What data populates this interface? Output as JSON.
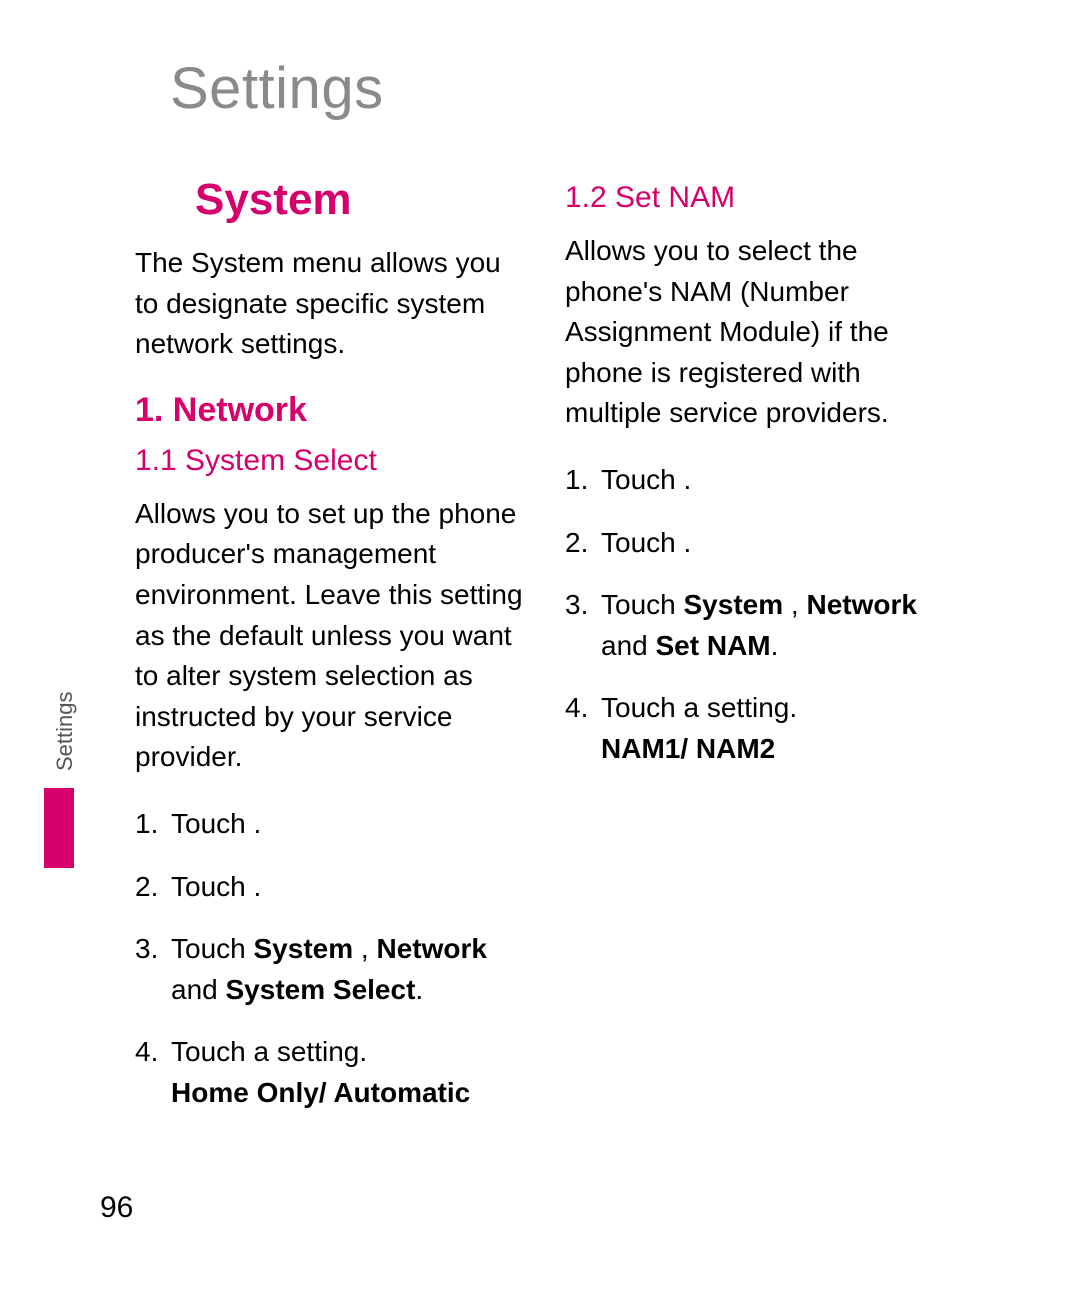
{
  "colors": {
    "accent": "#d6006c",
    "title_gray": "#8a8a8a",
    "text": "#000000",
    "side_label": "#555555",
    "background": "#ffffff"
  },
  "typography": {
    "title_fontsize_pt": 44,
    "h_main_fontsize_pt": 33,
    "h_section_fontsize_pt": 26,
    "h_sub_fontsize_pt": 23,
    "body_fontsize_pt": 21,
    "side_label_fontsize_pt": 17,
    "page_number_fontsize_pt": 23
  },
  "page": {
    "title": "Settings",
    "side_label": "Settings",
    "number": "96"
  },
  "left": {
    "main_heading": "System",
    "intro": "The System menu allows you to designate specific system network settings.",
    "section_heading": "1. Network",
    "sub_heading": "1.1 System Select",
    "sub_para": "Allows you to set up the phone producer's management environment. Leave this setting as the default unless you want to alter system selection as instructed by your service provider.",
    "steps": {
      "s1": "Touch        .",
      "s2": "Touch        .",
      "s3_prefix": "Touch ",
      "s3_b1": "System",
      "s3_mid": "        , ",
      "s3_b2": "Network",
      "s3_and": " and ",
      "s3_b3": "System Select",
      "s3_end": ".",
      "s4_line1": "Touch a setting.",
      "s4_b": "Home Only/ Automatic"
    }
  },
  "right": {
    "sub_heading": "1.2 Set NAM",
    "sub_para": "Allows you to select the phone's NAM (Number Assignment Module) if the phone is registered with multiple service providers.",
    "steps": {
      "s1": "Touch        .",
      "s2": "Touch        .",
      "s3_prefix": "Touch ",
      "s3_b1": "System",
      "s3_mid": "        , ",
      "s3_b2": "Network",
      "s3_and": " and ",
      "s3_b3": "Set NAM",
      "s3_end": ".",
      "s4_line1": "Touch a setting.",
      "s4_b": "NAM1/ NAM2"
    }
  }
}
